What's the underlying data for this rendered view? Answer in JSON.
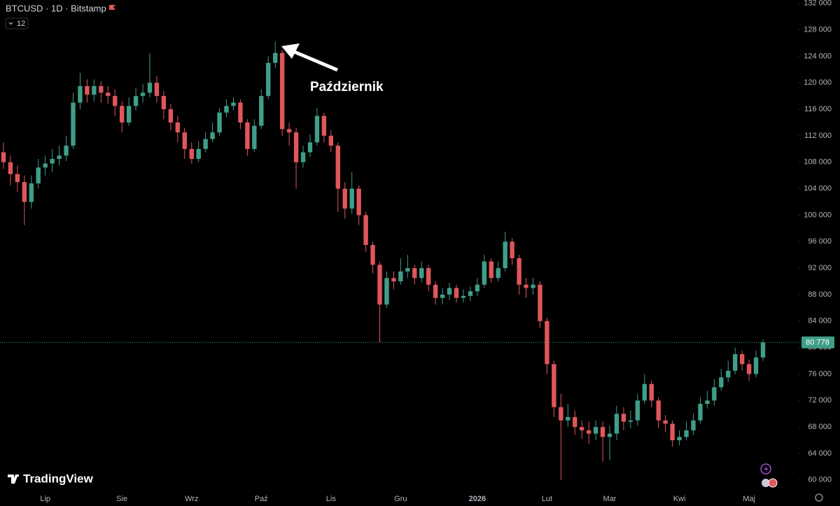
{
  "header": {
    "symbol": "BTCUSD · 1D · Bitstamp",
    "indicator_count": "12",
    "logo": "TradingView"
  },
  "chart_data": {
    "type": "candlestick",
    "categories": [
      null,
      null,
      null,
      null,
      null,
      null,
      "Lip",
      null,
      null,
      null,
      null,
      null,
      null,
      null,
      null,
      null,
      null,
      "Sie",
      null,
      null,
      null,
      null,
      null,
      null,
      null,
      null,
      null,
      "Wrz",
      null,
      null,
      null,
      null,
      null,
      null,
      null,
      null,
      null,
      "Paź",
      null,
      null,
      null,
      null,
      null,
      null,
      null,
      null,
      null,
      "Lis",
      null,
      null,
      null,
      null,
      null,
      null,
      null,
      null,
      null,
      "Gru",
      null,
      null,
      null,
      null,
      null,
      null,
      null,
      null,
      null,
      null,
      "2026",
      null,
      null,
      null,
      null,
      null,
      null,
      null,
      null,
      null,
      "Lut",
      null,
      null,
      null,
      null,
      null,
      null,
      null,
      null,
      "Mar",
      null,
      null,
      null,
      null,
      null,
      null,
      null,
      null,
      null,
      "Kwi",
      null,
      null,
      null,
      null,
      null,
      null,
      null,
      null,
      null,
      "Maj",
      null,
      null
    ],
    "open": [
      109500,
      108000,
      106200,
      105000,
      102000,
      104800,
      107200,
      107800,
      108500,
      109000,
      110500,
      117000,
      119500,
      118200,
      119500,
      118500,
      118000,
      116500,
      114000,
      116500,
      118000,
      118500,
      120000,
      118000,
      116000,
      114000,
      112500,
      110000,
      108500,
      110000,
      111500,
      112500,
      115500,
      116500,
      117000,
      114000,
      110000,
      113500,
      118000,
      123000,
      124500,
      113000,
      112500,
      108000,
      109500,
      111000,
      115000,
      112000,
      110500,
      104000,
      101000,
      104000,
      100000,
      95500,
      92500,
      86500,
      90500,
      90000,
      91500,
      92000,
      90500,
      92000,
      89500,
      87500,
      88000,
      89000,
      87500,
      87800,
      88500,
      89500,
      93000,
      90500,
      92000,
      96000,
      93500,
      89500,
      89000,
      89500,
      84000,
      77500,
      71000,
      69000,
      69500,
      68000,
      67500,
      67000,
      68000,
      66500,
      67000,
      70000,
      68800,
      69000,
      72000,
      74500,
      72000,
      69000,
      68500,
      66000,
      66500,
      67500,
      69000,
      71500,
      72000,
      74000,
      75500,
      76500,
      79000,
      77500,
      76000,
      78500
    ],
    "high": [
      111000,
      109000,
      107500,
      106000,
      106000,
      108500,
      109000,
      110000,
      110500,
      112000,
      118500,
      121500,
      120500,
      120500,
      120200,
      119500,
      119000,
      117200,
      117800,
      119200,
      119800,
      124500,
      121000,
      118800,
      116800,
      115000,
      113200,
      111000,
      111200,
      112500,
      114000,
      116200,
      117500,
      117800,
      117500,
      114500,
      114500,
      119000,
      124000,
      126200,
      125000,
      114000,
      113200,
      110500,
      112200,
      116200,
      115500,
      112800,
      111000,
      105000,
      106500,
      104500,
      100500,
      96000,
      93000,
      91500,
      91500,
      93500,
      94000,
      92500,
      93000,
      92500,
      90000,
      89000,
      89800,
      89500,
      88800,
      89200,
      90500,
      94000,
      93500,
      93000,
      97500,
      96500,
      94000,
      90500,
      90500,
      90000,
      84500,
      78000,
      73000,
      71500,
      70500,
      69000,
      68800,
      69000,
      68800,
      68200,
      71200,
      71000,
      70500,
      73000,
      76000,
      75000,
      72500,
      69800,
      69000,
      67500,
      68800,
      70000,
      72500,
      73500,
      75200,
      76800,
      78000,
      80000,
      79500,
      78200,
      79500,
      81200
    ],
    "low": [
      107000,
      104500,
      103500,
      98500,
      101000,
      104000,
      106000,
      106500,
      107500,
      108200,
      110000,
      116000,
      117000,
      117200,
      117000,
      116800,
      115000,
      112500,
      113500,
      115800,
      117000,
      117800,
      117000,
      114500,
      112800,
      111000,
      108500,
      107800,
      108000,
      109500,
      111000,
      112000,
      114800,
      115800,
      113000,
      109000,
      109500,
      113000,
      117500,
      122200,
      112000,
      110500,
      104000,
      107200,
      108800,
      110500,
      111000,
      109500,
      100500,
      99500,
      100200,
      98500,
      94500,
      91200,
      80800,
      86000,
      88800,
      89500,
      90500,
      89500,
      89800,
      88500,
      86500,
      86500,
      87200,
      86800,
      86800,
      87000,
      87800,
      89000,
      89800,
      90000,
      91500,
      92500,
      88000,
      87500,
      88000,
      83000,
      76000,
      69500,
      60000,
      68000,
      66800,
      66200,
      65500,
      66000,
      62800,
      63000,
      66000,
      67500,
      67800,
      68200,
      71500,
      71000,
      67800,
      67200,
      65000,
      65200,
      66000,
      66800,
      68500,
      70800,
      71200,
      73500,
      74800,
      76000,
      76500,
      75000,
      75500,
      78000
    ],
    "close": [
      108000,
      106200,
      105000,
      102000,
      104800,
      107200,
      107800,
      108500,
      109000,
      110500,
      117000,
      119500,
      118200,
      119500,
      118500,
      118000,
      116500,
      114000,
      116500,
      118000,
      118500,
      120000,
      118000,
      116000,
      114000,
      112500,
      110000,
      108500,
      110000,
      111500,
      112500,
      115500,
      116500,
      117000,
      114000,
      110000,
      113500,
      118000,
      123000,
      124500,
      113000,
      112500,
      108000,
      109500,
      111000,
      115000,
      112000,
      110500,
      104000,
      101000,
      104000,
      100000,
      95500,
      92500,
      86500,
      90500,
      90000,
      91500,
      92000,
      90500,
      92000,
      89500,
      87500,
      88000,
      89000,
      87500,
      87800,
      88500,
      89500,
      93000,
      90500,
      92000,
      96000,
      93500,
      89500,
      89000,
      89500,
      84000,
      77500,
      71000,
      69000,
      69500,
      68000,
      67500,
      67000,
      68000,
      66500,
      67000,
      70000,
      68800,
      69000,
      72000,
      74500,
      72000,
      69000,
      68500,
      66000,
      66500,
      67500,
      69000,
      71500,
      72000,
      74000,
      75500,
      76500,
      79000,
      77500,
      76000,
      78500,
      80778
    ],
    "up_color": "#3f9e88",
    "down_color": "#e0565a",
    "ylim": [
      58500,
      132500
    ],
    "yticks": [
      {
        "value": 60000,
        "label": "60 000"
      },
      {
        "value": 64000,
        "label": "64 000"
      },
      {
        "value": 68000,
        "label": "68 000"
      },
      {
        "value": 72000,
        "label": "72 000"
      },
      {
        "value": 76000,
        "label": "76 000"
      },
      {
        "value": 80000,
        "label": "80 000"
      },
      {
        "value": 84000,
        "label": "84 000"
      },
      {
        "value": 88000,
        "label": "88 000"
      },
      {
        "value": 92000,
        "label": "92 000"
      },
      {
        "value": 96000,
        "label": "96 000"
      },
      {
        "value": 100000,
        "label": "100 000"
      },
      {
        "value": 104000,
        "label": "104 000"
      },
      {
        "value": 108000,
        "label": "108 000"
      },
      {
        "value": 112000,
        "label": "112 000"
      },
      {
        "value": 116000,
        "label": "116 000"
      },
      {
        "value": 120000,
        "label": "120 000"
      },
      {
        "value": 124000,
        "label": "124 000"
      },
      {
        "value": 128000,
        "label": "128 000"
      },
      {
        "value": 132000,
        "label": "132 000"
      }
    ],
    "grid": false,
    "last_price": {
      "value": 80778,
      "label": "80 778"
    },
    "annotation": "Październik"
  }
}
